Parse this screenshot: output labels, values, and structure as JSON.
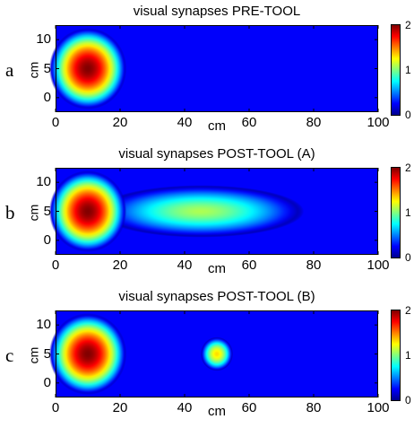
{
  "colors": {
    "background": "#ffffff",
    "axis": "#000000",
    "colormap": "jet"
  },
  "chart_data": [
    {
      "type": "heatmap",
      "panel_letter": "a",
      "title": "visual synapses PRE-TOOL",
      "xlabel": "cm",
      "ylabel": "cm",
      "xlim": [
        0,
        100
      ],
      "ylim": [
        12.5,
        -2.5
      ],
      "xticks": [
        0,
        20,
        40,
        60,
        80,
        100
      ],
      "yticks": [
        0,
        5,
        10
      ],
      "colorbar": {
        "range": [
          0,
          2
        ],
        "ticks": [
          0,
          1,
          2
        ]
      },
      "blobs": [
        {
          "shape": "circle",
          "center_x": 10,
          "center_y": 5,
          "radius": 12,
          "peak": 2.0
        }
      ]
    },
    {
      "type": "heatmap",
      "panel_letter": "b",
      "title": "visual synapses POST-TOOL (A)",
      "xlabel": "cm",
      "ylabel": "cm",
      "xlim": [
        0,
        100
      ],
      "ylim": [
        12.5,
        -2.5
      ],
      "xticks": [
        0,
        20,
        40,
        60,
        80,
        100
      ],
      "yticks": [
        0,
        5,
        10
      ],
      "colorbar": {
        "range": [
          0,
          2
        ],
        "ticks": [
          0,
          1,
          2
        ]
      },
      "blobs": [
        {
          "shape": "circle",
          "center_x": 10,
          "center_y": 5,
          "radius": 12,
          "peak": 2.0
        },
        {
          "shape": "ellipse",
          "center_x": 45,
          "center_y": 5,
          "half_length_x": 32,
          "half_width_y": 4.5,
          "peak": 1.2
        }
      ]
    },
    {
      "type": "heatmap",
      "panel_letter": "c",
      "title": "visual synapses POST-TOOL (B)",
      "xlabel": "cm",
      "ylabel": "cm",
      "xlim": [
        0,
        100
      ],
      "ylim": [
        12.5,
        -2.5
      ],
      "xticks": [
        0,
        20,
        40,
        60,
        80,
        100
      ],
      "yticks": [
        0,
        5,
        10
      ],
      "colorbar": {
        "range": [
          0,
          2
        ],
        "ticks": [
          0,
          1,
          2
        ]
      },
      "blobs": [
        {
          "shape": "circle",
          "center_x": 10,
          "center_y": 5,
          "radius": 12,
          "peak": 2.0
        },
        {
          "shape": "circle",
          "center_x": 50,
          "center_y": 5,
          "radius": 5,
          "peak": 1.4
        }
      ]
    }
  ]
}
